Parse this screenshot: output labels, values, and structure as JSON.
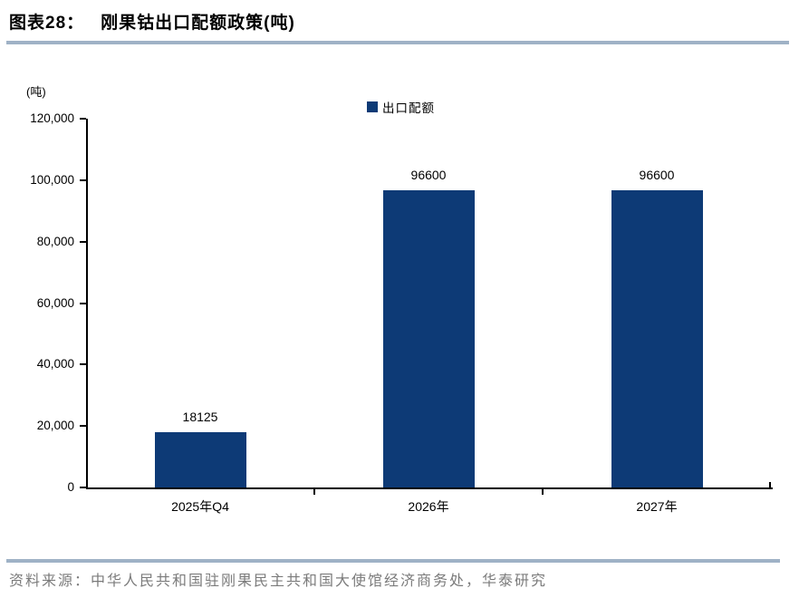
{
  "header": {
    "label": "图表28：",
    "title": "刚果钴出口配额政策(吨)"
  },
  "chart_data": {
    "type": "bar",
    "title": "刚果钴出口配额政策(吨)",
    "unit_label": "(吨)",
    "categories": [
      "2025年Q4",
      "2026年",
      "2027年"
    ],
    "series": [
      {
        "name": "出口配额",
        "values": [
          18125,
          96600,
          96600
        ]
      }
    ],
    "data_labels": [
      "18125",
      "96600",
      "96600"
    ],
    "ylim": [
      0,
      120000
    ],
    "ytick_step": 20000,
    "ytick_labels": [
      "0",
      "20,000",
      "40,000",
      "60,000",
      "80,000",
      "100,000",
      "120,000"
    ],
    "legend": {
      "position": "top-center",
      "entries": [
        "出口配额"
      ]
    },
    "grid": false
  },
  "colors": {
    "bar": "#0d3a76",
    "rule": "#9fb2c6",
    "axis": "#000000",
    "source_text": "#7b7b7b"
  },
  "footer": {
    "source": "资料来源：中华人民共和国驻刚果民主共和国大使馆经济商务处，华泰研究"
  }
}
